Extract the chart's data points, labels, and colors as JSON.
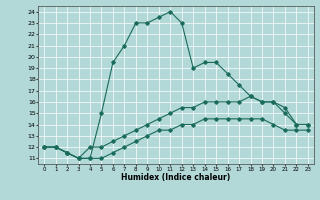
{
  "title": "",
  "xlabel": "Humidex (Indice chaleur)",
  "bg_color": "#b2d8d8",
  "line_color": "#1a6b5a",
  "grid_color": "#ffffff",
  "ylim": [
    10.5,
    24.5
  ],
  "xlim": [
    -0.5,
    23.5
  ],
  "yticks": [
    11,
    12,
    13,
    14,
    15,
    16,
    17,
    18,
    19,
    20,
    21,
    22,
    23,
    24
  ],
  "xticks": [
    0,
    1,
    2,
    3,
    4,
    5,
    6,
    7,
    8,
    9,
    10,
    11,
    12,
    13,
    14,
    15,
    16,
    17,
    18,
    19,
    20,
    21,
    22,
    23
  ],
  "line1_x": [
    0,
    1,
    2,
    3,
    4,
    5,
    6,
    7,
    8,
    9,
    10,
    11,
    12,
    13,
    14,
    15,
    16,
    17,
    18,
    19,
    20,
    21,
    22,
    23
  ],
  "line1_y": [
    12,
    12,
    11.5,
    11,
    11,
    15,
    19.5,
    21,
    23,
    23,
    23.5,
    24,
    23,
    19,
    19.5,
    19.5,
    18.5,
    17.5,
    16.5,
    16,
    16,
    15,
    14,
    14
  ],
  "line2_x": [
    0,
    1,
    2,
    3,
    4,
    5,
    6,
    7,
    8,
    9,
    10,
    11,
    12,
    13,
    14,
    15,
    16,
    17,
    18,
    19,
    20,
    21,
    22,
    23
  ],
  "line2_y": [
    12,
    12,
    11.5,
    11,
    12,
    12,
    12.5,
    13,
    13.5,
    14,
    14.5,
    15,
    15.5,
    15.5,
    16,
    16,
    16,
    16,
    16.5,
    16,
    16,
    15.5,
    14,
    14
  ],
  "line3_x": [
    0,
    1,
    2,
    3,
    4,
    5,
    6,
    7,
    8,
    9,
    10,
    11,
    12,
    13,
    14,
    15,
    16,
    17,
    18,
    19,
    20,
    21,
    22,
    23
  ],
  "line3_y": [
    12,
    12,
    11.5,
    11,
    11,
    11,
    11.5,
    12,
    12.5,
    13,
    13.5,
    13.5,
    14,
    14,
    14.5,
    14.5,
    14.5,
    14.5,
    14.5,
    14.5,
    14,
    13.5,
    13.5,
    13.5
  ]
}
